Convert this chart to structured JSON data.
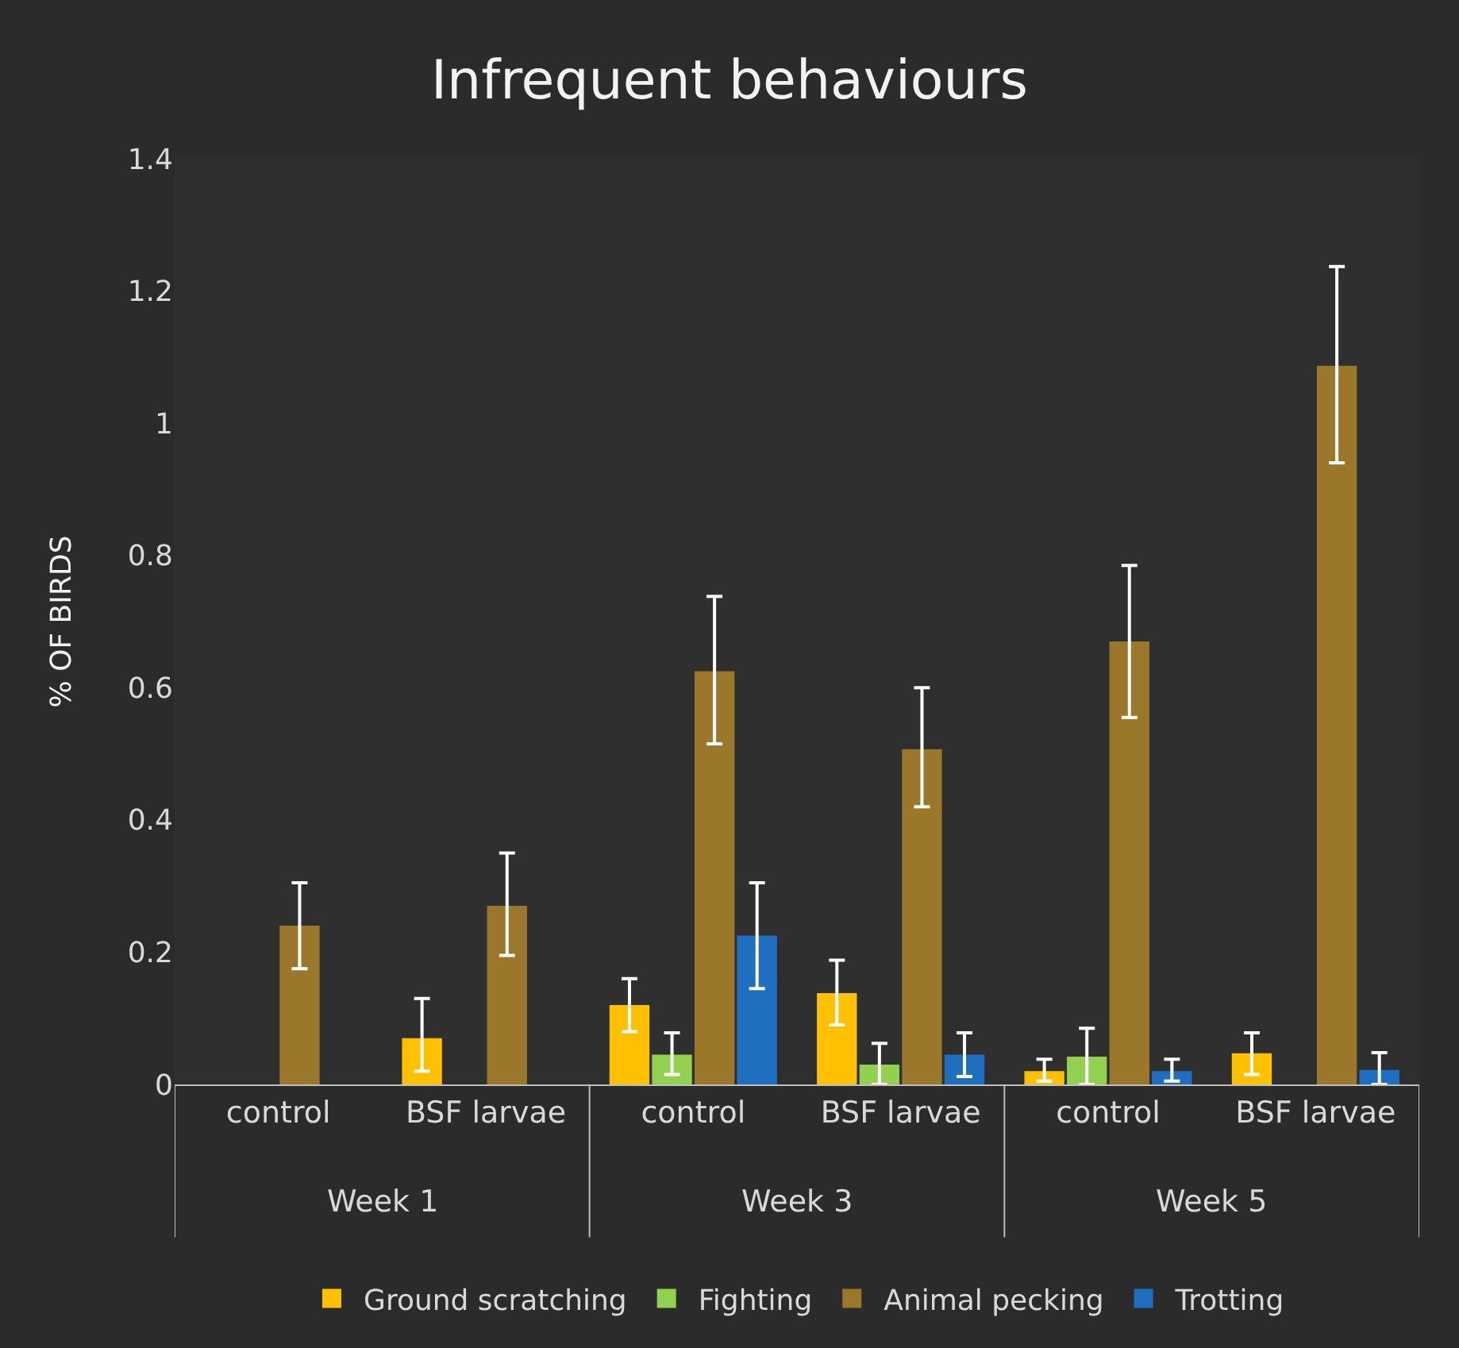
{
  "chart_data": {
    "type": "bar",
    "title": "Infrequent behaviours",
    "ylabel": "% OF BIRDS",
    "categories": [
      "control",
      "BSF larvae",
      "control",
      "BSF larvae",
      "control",
      "BSF larvae"
    ],
    "annotations": [
      "Week 1",
      "Week 3",
      "Week 5"
    ],
    "series": [
      {
        "name": "Ground scratching",
        "color": "#ffc000",
        "values": [
          null,
          0.07,
          0.12,
          0.138,
          0.02,
          0.047
        ],
        "errors": [
          null,
          [
            0.02,
            0.13
          ],
          [
            0.08,
            0.16
          ],
          [
            0.09,
            0.188
          ],
          [
            0.005,
            0.038
          ],
          [
            0.015,
            0.078
          ]
        ]
      },
      {
        "name": "Fighting",
        "color": "#92d050",
        "values": [
          null,
          null,
          0.045,
          0.03,
          0.042,
          null
        ],
        "errors": [
          null,
          null,
          [
            0.015,
            0.078
          ],
          [
            0,
            0.062
          ],
          [
            0,
            0.085
          ],
          null
        ]
      },
      {
        "name": "Animal pecking",
        "color": "#9a772b",
        "values": [
          0.24,
          0.27,
          0.625,
          0.507,
          0.67,
          1.087
        ],
        "errors": [
          [
            0.175,
            0.305
          ],
          [
            0.195,
            0.35
          ],
          [
            0.515,
            0.738
          ],
          [
            0.42,
            0.6
          ],
          [
            0.555,
            0.785
          ],
          [
            0.94,
            1.237
          ]
        ]
      },
      {
        "name": "Trotting",
        "color": "#1f6fc0",
        "values": [
          null,
          null,
          0.225,
          0.045,
          0.02,
          0.022
        ],
        "errors": [
          null,
          null,
          [
            0.145,
            0.305
          ],
          [
            0.012,
            0.078
          ],
          [
            0.005,
            0.038
          ],
          [
            0,
            0.048
          ]
        ]
      }
    ],
    "ylim": [
      0,
      1.4
    ],
    "yticks": [
      0,
      0.2,
      0.4,
      0.6,
      0.8,
      1,
      1.2,
      1.4
    ],
    "grid": false,
    "legend": "bottom"
  }
}
